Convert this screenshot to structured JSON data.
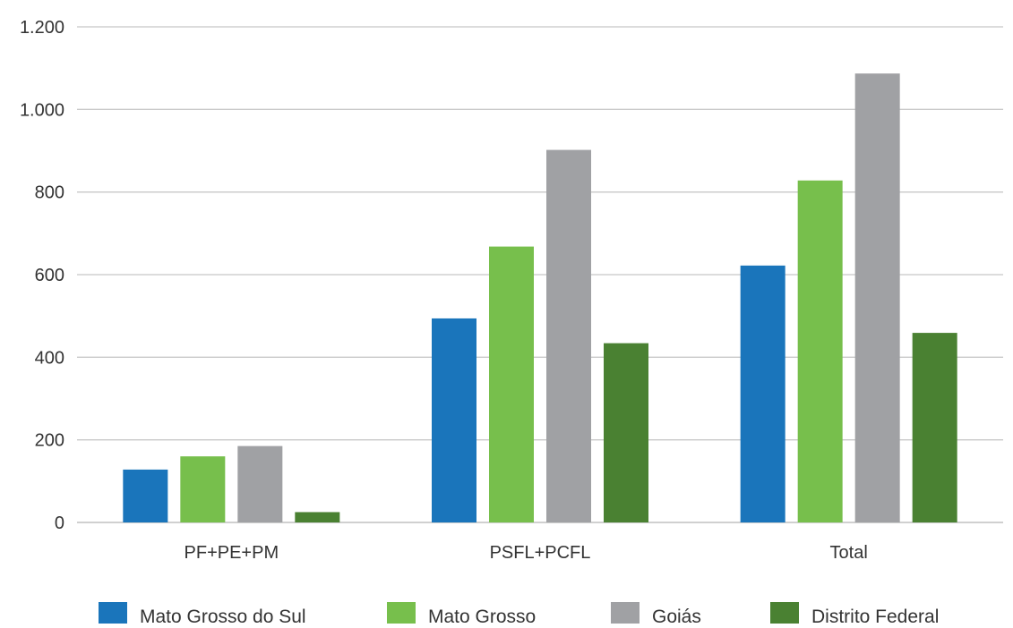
{
  "chart_data": {
    "type": "bar",
    "title": "",
    "xlabel": "",
    "ylabel": "",
    "categories": [
      "PF+PE+PM",
      "PSFL+PCFL",
      "Total"
    ],
    "series": [
      {
        "name": "Mato Grosso do Sul",
        "color": "#1a75bb",
        "values": [
          128,
          494,
          622
        ]
      },
      {
        "name": "Mato Grosso",
        "color": "#77bf4c",
        "values": [
          160,
          668,
          828
        ]
      },
      {
        "name": "Goiás",
        "color": "#a0a1a4",
        "values": [
          185,
          902,
          1087
        ]
      },
      {
        "name": "Distrito Federal",
        "color": "#4a8132",
        "values": [
          25,
          434,
          459
        ]
      }
    ],
    "ylim": [
      0,
      1200
    ],
    "yticks": [
      0,
      200,
      400,
      600,
      800,
      1000,
      1200
    ],
    "ytick_labels": [
      "0",
      "200",
      "400",
      "600",
      "800",
      "1.000",
      "1.200"
    ],
    "grid": true,
    "legend": "bottom"
  }
}
